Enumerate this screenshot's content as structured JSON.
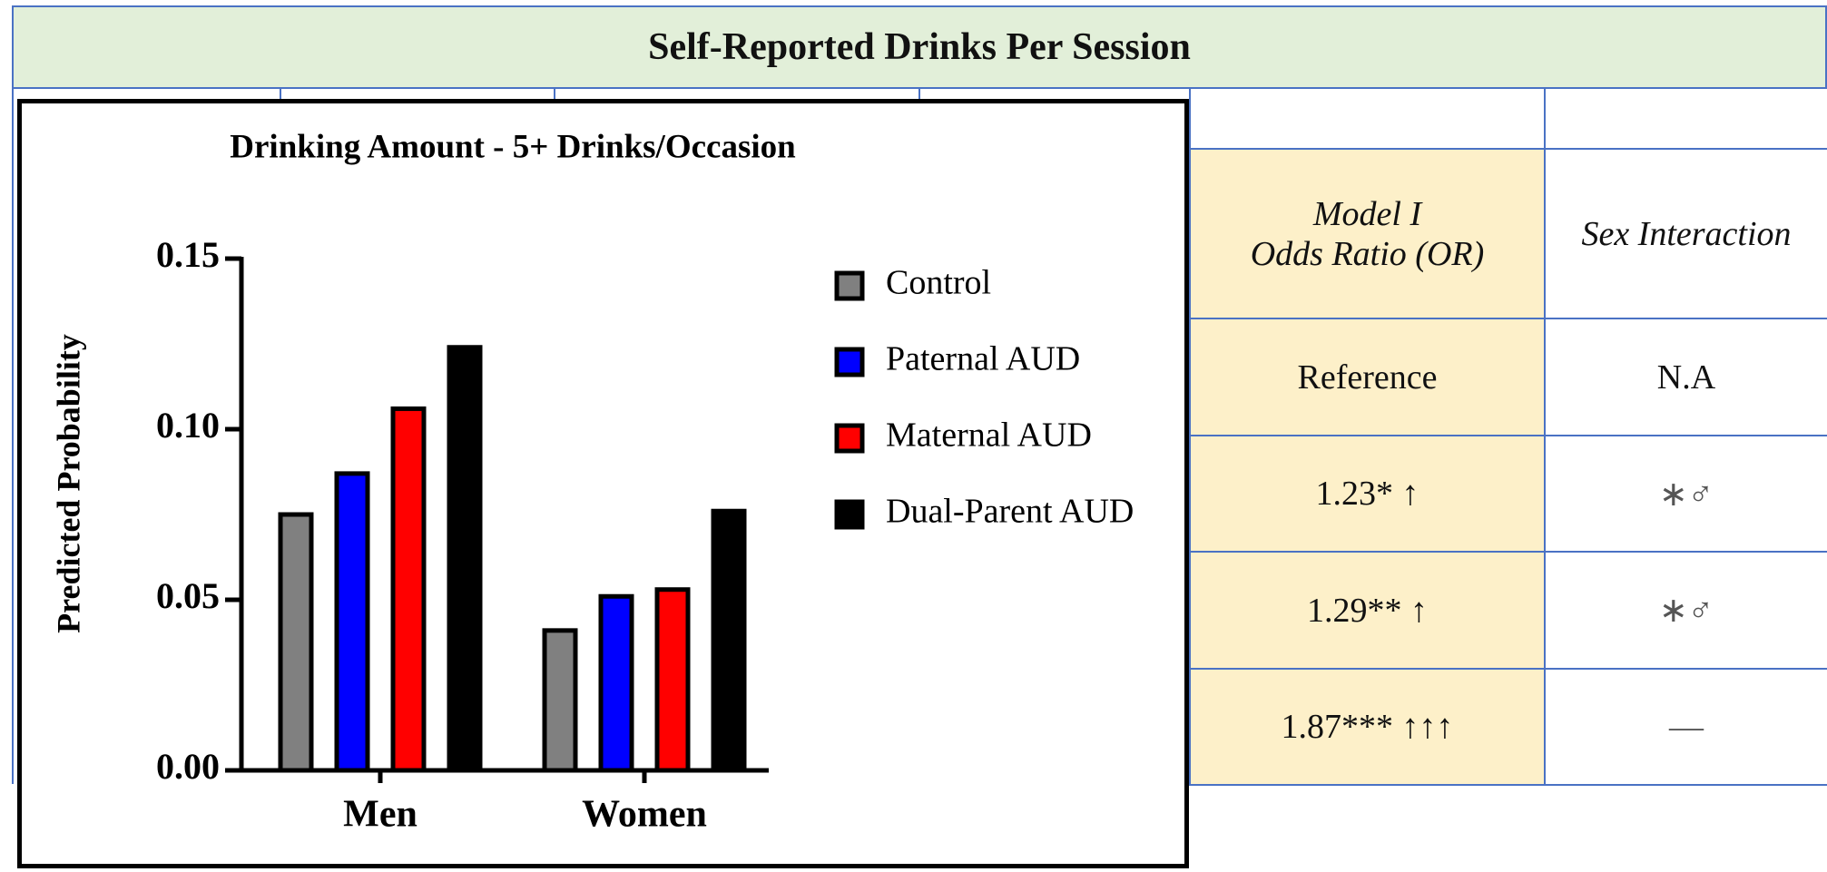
{
  "table": {
    "title": "Self-Reported Drinks Per Session",
    "header": [
      "Model I\nOdds Ratio (OR)",
      "Sex Interaction"
    ],
    "rows": [
      [
        "Reference",
        "N.A"
      ],
      [
        "1.23* ↑",
        "∗♂"
      ],
      [
        "1.29** ↑",
        "∗♂"
      ],
      [
        "1.87*** ↑↑↑",
        "—"
      ]
    ]
  },
  "chart_data": {
    "type": "bar",
    "title": "Drinking Amount - 5+ Drinks/Occasion",
    "y_label": "Predicted Probability",
    "categories": [
      "Men",
      "Women"
    ],
    "series": [
      {
        "name": "Control",
        "color": "#808080",
        "values": [
          0.075,
          0.041
        ]
      },
      {
        "name": "Paternal AUD",
        "color": "#0000ff",
        "values": [
          0.087,
          0.051
        ]
      },
      {
        "name": "Maternal AUD",
        "color": "#ff0000",
        "values": [
          0.106,
          0.053
        ]
      },
      {
        "name": "Dual-Parent AUD",
        "color": "#000000",
        "values": [
          0.124,
          0.076
        ]
      }
    ],
    "ylim": [
      0,
      0.15
    ],
    "yticks": [
      {
        "value": 0,
        "label": "0.00"
      },
      {
        "value": 0.05,
        "label": "0.05"
      },
      {
        "value": 0.1,
        "label": "0.10"
      },
      {
        "value": 0.15,
        "label": "0.15"
      }
    ],
    "legend": "right"
  }
}
